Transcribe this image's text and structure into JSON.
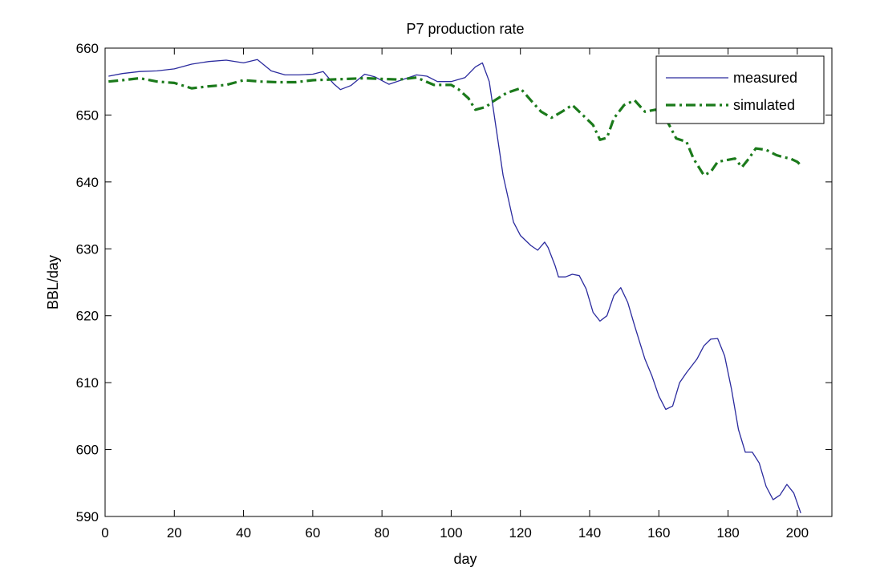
{
  "chart_data": {
    "type": "line",
    "title": "P7 production rate",
    "xlabel": "day",
    "ylabel": "BBL/day",
    "xlim": [
      0,
      210
    ],
    "ylim": [
      590,
      660
    ],
    "xticks": [
      0,
      20,
      40,
      60,
      80,
      100,
      120,
      140,
      160,
      180,
      200
    ],
    "yticks": [
      590,
      600,
      610,
      620,
      630,
      640,
      650,
      660
    ],
    "grid": false,
    "legend_position": "top-right",
    "series": [
      {
        "name": "measured",
        "color": "#2B2B9E",
        "style": "solid",
        "points": [
          [
            1,
            655.8
          ],
          [
            5,
            656.2
          ],
          [
            10,
            656.5
          ],
          [
            15,
            656.6
          ],
          [
            20,
            656.9
          ],
          [
            25,
            657.6
          ],
          [
            30,
            658.0
          ],
          [
            35,
            658.2
          ],
          [
            40,
            657.8
          ],
          [
            44,
            658.3
          ],
          [
            48,
            656.6
          ],
          [
            52,
            656.0
          ],
          [
            56,
            656.0
          ],
          [
            60,
            656.1
          ],
          [
            63,
            656.5
          ],
          [
            66,
            654.7
          ],
          [
            68,
            653.8
          ],
          [
            71,
            654.4
          ],
          [
            75,
            656.1
          ],
          [
            78,
            655.7
          ],
          [
            82,
            654.6
          ],
          [
            86,
            655.3
          ],
          [
            90,
            656.0
          ],
          [
            93,
            655.8
          ],
          [
            96,
            655.0
          ],
          [
            100,
            655.0
          ],
          [
            104,
            655.6
          ],
          [
            107,
            657.2
          ],
          [
            109,
            657.8
          ],
          [
            111,
            655.0
          ],
          [
            113,
            648.0
          ],
          [
            115,
            641.0
          ],
          [
            118,
            634.0
          ],
          [
            120,
            632.0
          ],
          [
            123,
            630.5
          ],
          [
            125,
            629.8
          ],
          [
            127,
            631.0
          ],
          [
            128,
            630.2
          ],
          [
            130,
            627.5
          ],
          [
            131,
            625.8
          ],
          [
            133,
            625.8
          ],
          [
            135,
            626.2
          ],
          [
            137,
            626.0
          ],
          [
            139,
            624.0
          ],
          [
            141,
            620.5
          ],
          [
            143,
            619.2
          ],
          [
            145,
            620.0
          ],
          [
            147,
            623.0
          ],
          [
            149,
            624.2
          ],
          [
            151,
            622.0
          ],
          [
            153,
            618.5
          ],
          [
            156,
            613.5
          ],
          [
            158,
            611.0
          ],
          [
            160,
            608.0
          ],
          [
            162,
            606.0
          ],
          [
            164,
            606.5
          ],
          [
            166,
            610.0
          ],
          [
            168,
            611.5
          ],
          [
            171,
            613.5
          ],
          [
            173,
            615.5
          ],
          [
            175,
            616.5
          ],
          [
            177,
            616.6
          ],
          [
            179,
            614.0
          ],
          [
            181,
            609.0
          ],
          [
            183,
            603.0
          ],
          [
            185,
            599.6
          ],
          [
            187,
            599.6
          ],
          [
            189,
            598.0
          ],
          [
            191,
            594.5
          ],
          [
            193,
            592.5
          ],
          [
            195,
            593.2
          ],
          [
            197,
            594.8
          ],
          [
            199,
            593.5
          ],
          [
            201,
            590.5
          ]
        ]
      },
      {
        "name": "simulated",
        "color": "#1B7A1B",
        "style": "dash-dot",
        "points": [
          [
            1,
            655.0
          ],
          [
            5,
            655.2
          ],
          [
            10,
            655.5
          ],
          [
            15,
            655.0
          ],
          [
            20,
            654.8
          ],
          [
            25,
            654.0
          ],
          [
            30,
            654.3
          ],
          [
            35,
            654.5
          ],
          [
            40,
            655.2
          ],
          [
            45,
            655.0
          ],
          [
            50,
            654.9
          ],
          [
            55,
            654.9
          ],
          [
            60,
            655.2
          ],
          [
            65,
            655.3
          ],
          [
            70,
            655.4
          ],
          [
            75,
            655.5
          ],
          [
            80,
            655.4
          ],
          [
            85,
            655.3
          ],
          [
            90,
            655.6
          ],
          [
            95,
            654.5
          ],
          [
            100,
            654.5
          ],
          [
            102,
            653.9
          ],
          [
            105,
            652.5
          ],
          [
            107,
            650.8
          ],
          [
            110,
            651.2
          ],
          [
            112,
            652.0
          ],
          [
            116,
            653.3
          ],
          [
            120,
            654.0
          ],
          [
            123,
            652.2
          ],
          [
            126,
            650.5
          ],
          [
            129,
            649.6
          ],
          [
            132,
            650.5
          ],
          [
            135,
            651.5
          ],
          [
            138,
            650.0
          ],
          [
            141,
            648.5
          ],
          [
            143,
            646.3
          ],
          [
            145,
            646.6
          ],
          [
            147,
            649.5
          ],
          [
            150,
            651.5
          ],
          [
            153,
            652.2
          ],
          [
            156,
            650.5
          ],
          [
            159,
            650.8
          ],
          [
            161,
            650.3
          ],
          [
            163,
            648.5
          ],
          [
            165,
            646.5
          ],
          [
            168,
            646.0
          ],
          [
            170,
            643.5
          ],
          [
            173,
            641.0
          ],
          [
            175,
            641.5
          ],
          [
            177,
            643.0
          ],
          [
            180,
            643.3
          ],
          [
            182,
            643.5
          ],
          [
            184,
            642.2
          ],
          [
            186,
            643.5
          ],
          [
            188,
            645.0
          ],
          [
            191,
            644.8
          ],
          [
            194,
            644.0
          ],
          [
            196,
            643.7
          ],
          [
            198,
            643.5
          ],
          [
            200,
            643.0
          ],
          [
            201,
            642.5
          ]
        ]
      }
    ]
  }
}
